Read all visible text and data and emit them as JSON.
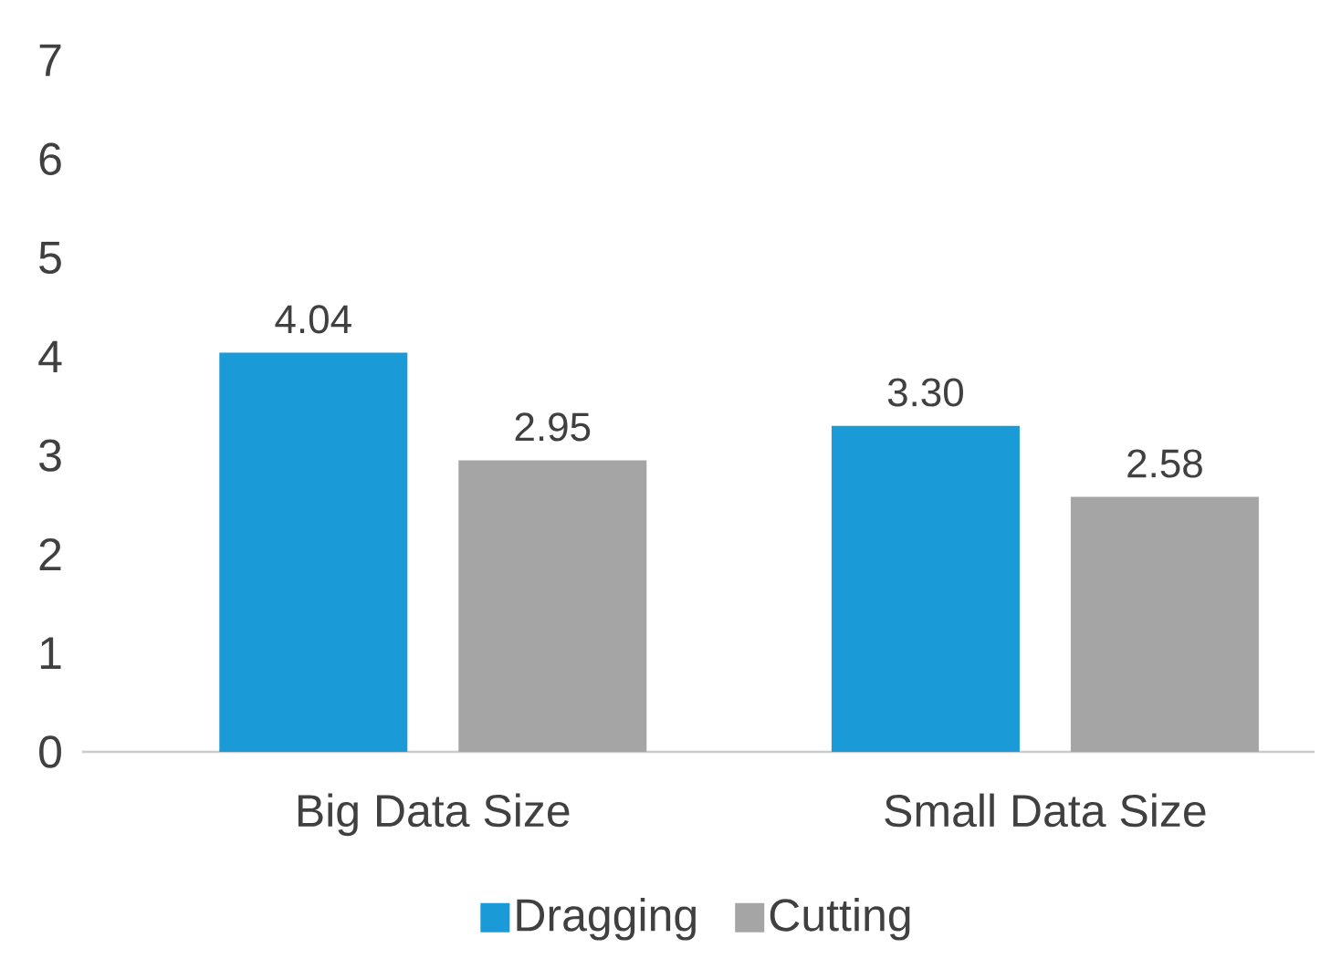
{
  "chart_data": {
    "type": "bar",
    "categories": [
      "Big Data Size",
      "Small Data Size"
    ],
    "series": [
      {
        "name": "Dragging",
        "color": "#1a9ad6",
        "values": [
          4.04,
          3.3
        ],
        "value_labels": [
          "4.04",
          "3.30"
        ]
      },
      {
        "name": "Cutting",
        "color": "#a5a5a5",
        "values": [
          2.95,
          2.58
        ],
        "value_labels": [
          "2.95",
          "2.58"
        ]
      }
    ],
    "ylim": [
      0,
      7
    ],
    "yticks": [
      0,
      1,
      2,
      3,
      4,
      5,
      6,
      7
    ],
    "grid": false,
    "legend": "bottom"
  }
}
